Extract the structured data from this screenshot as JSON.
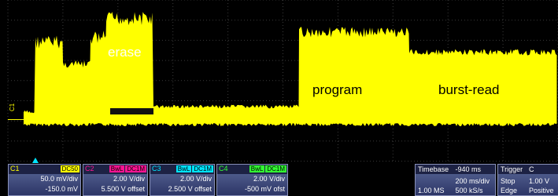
{
  "screen": {
    "annotations": {
      "erase": "erase",
      "program": "program",
      "burst_read": "burst-read",
      "channel_marker": "C1"
    },
    "channels": [
      {
        "name": "C1",
        "tags": [
          "DC50"
        ],
        "scale": "50.0 mV/div",
        "offset": "-150.0 mV",
        "color": "#ffff00"
      },
      {
        "name": "C2",
        "tags": [
          "BwL",
          "DC1M"
        ],
        "scale": "2.00 V/div",
        "offset": "5.500 V offset",
        "color": "#ff1493"
      },
      {
        "name": "C3",
        "tags": [
          "BwL",
          "DC1M"
        ],
        "scale": "2.00 V/div",
        "offset": "2.500 V offset",
        "color": "#00e5ff"
      },
      {
        "name": "C4",
        "tags": [
          "BwL",
          "DC1M"
        ],
        "scale": "2.00 V/div",
        "offset": "-500 mV ofst",
        "color": "#33ff33"
      }
    ],
    "timebase": {
      "label": "Timebase",
      "delay": "-940 ms",
      "div": "200 ms/div",
      "points": "1.00 MS",
      "rate": "500 kS/s"
    },
    "trigger": {
      "label": "Trigger",
      "source": "C",
      "mode": "Stop",
      "level": "1.00 V",
      "type": "Edge",
      "slope": "Positive"
    }
  }
}
